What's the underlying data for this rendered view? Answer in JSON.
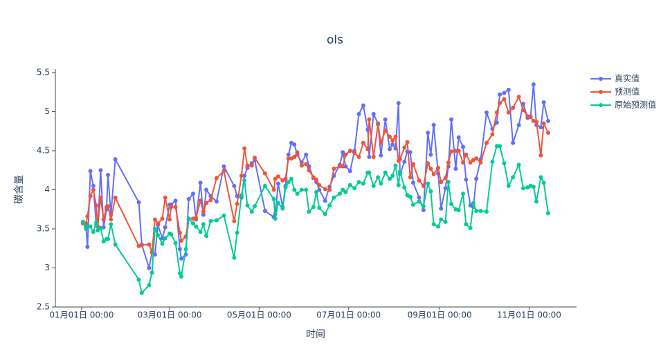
{
  "chart_data": {
    "type": "line",
    "title": "ols",
    "x_label": "时间",
    "y_label": "碳含量",
    "legend": "right",
    "grid": false,
    "x": [
      "01-02",
      "01-04",
      "01-05",
      "01-07",
      "01-09",
      "01-11",
      "01-12",
      "01-14",
      "01-16",
      "01-18",
      "01-19",
      "01-21",
      "01-24",
      "02-09",
      "02-11",
      "02-16",
      "02-18",
      "02-20",
      "02-22",
      "02-25",
      "02-27",
      "03-01",
      "03-02",
      "03-05",
      "03-08",
      "03-09",
      "03-12",
      "03-14",
      "03-17",
      "03-19",
      "03-22",
      "03-24",
      "03-26",
      "03-29",
      "04-02",
      "04-07",
      "04-14",
      "04-16",
      "04-19",
      "04-21",
      "04-23",
      "04-26",
      "04-28",
      "05-05",
      "05-11",
      "05-12",
      "05-14",
      "05-17",
      "05-19",
      "05-21",
      "05-23",
      "05-25",
      "05-27",
      "05-30",
      "06-02",
      "06-04",
      "06-07",
      "06-09",
      "06-11",
      "06-15",
      "06-18",
      "06-21",
      "06-25",
      "06-27",
      "06-29",
      "07-02",
      "07-05",
      "07-08",
      "07-11",
      "07-14",
      "07-15",
      "07-18",
      "07-21",
      "07-23",
      "07-26",
      "07-29",
      "07-31",
      "08-02",
      "08-04",
      "08-05",
      "08-08",
      "08-10",
      "08-12",
      "08-14",
      "08-18",
      "08-21",
      "08-24",
      "08-26",
      "08-28",
      "08-31",
      "09-02",
      "09-05",
      "09-07",
      "09-09",
      "09-12",
      "09-14",
      "09-17",
      "09-19",
      "09-22",
      "09-24",
      "09-26",
      "09-29",
      "10-03",
      "10-07",
      "10-10",
      "10-12",
      "10-15",
      "10-18",
      "10-21",
      "10-25",
      "10-28",
      "10-31",
      "11-02",
      "11-04",
      "11-06",
      "11-09",
      "11-11",
      "11-14"
    ],
    "series": [
      {
        "name": "真实值",
        "color": "#636efa",
        "values": [
          3.57,
          3.53,
          3.27,
          4.24,
          4.05,
          3.55,
          3.48,
          4.25,
          3.52,
          3.75,
          4.19,
          3.68,
          4.39,
          3.84,
          3.3,
          3.0,
          3.2,
          3.17,
          3.55,
          3.38,
          3.52,
          3.81,
          3.81,
          3.86,
          3.24,
          3.12,
          3.17,
          3.88,
          3.95,
          3.62,
          4.09,
          3.68,
          4.0,
          3.92,
          3.85,
          4.3,
          4.05,
          3.92,
          3.9,
          4.18,
          4.28,
          4.34,
          4.38,
          3.73,
          3.65,
          3.69,
          4.08,
          3.78,
          4.05,
          4.45,
          4.6,
          4.58,
          4.45,
          4.35,
          4.45,
          4.3,
          4.15,
          4.1,
          4.0,
          3.86,
          4.04,
          4.18,
          4.32,
          4.48,
          4.3,
          4.24,
          4.5,
          4.97,
          5.08,
          4.77,
          4.42,
          4.97,
          4.85,
          4.44,
          4.9,
          4.52,
          4.58,
          4.53,
          5.11,
          4.2,
          4.36,
          4.49,
          4.48,
          4.09,
          3.9,
          3.74,
          4.73,
          4.45,
          4.83,
          4.21,
          3.76,
          4.02,
          4.3,
          4.9,
          4.27,
          4.67,
          4.55,
          4.13,
          3.8,
          3.78,
          4.14,
          4.39,
          4.99,
          4.78,
          4.86,
          5.22,
          5.24,
          5.28,
          4.6,
          4.83,
          5.1,
          4.92,
          4.94,
          5.35,
          4.83,
          4.8,
          5.12,
          4.88
        ]
      },
      {
        "name": "预测值",
        "color": "#EF553B",
        "values": [
          3.58,
          3.57,
          3.66,
          3.92,
          4.0,
          3.8,
          3.53,
          3.9,
          3.62,
          3.78,
          3.79,
          3.62,
          3.9,
          3.28,
          3.29,
          3.3,
          3.2,
          3.62,
          3.57,
          3.63,
          3.9,
          3.62,
          3.78,
          3.78,
          3.45,
          3.35,
          3.4,
          3.63,
          3.63,
          3.64,
          3.86,
          3.72,
          3.83,
          3.87,
          4.15,
          4.24,
          3.6,
          3.82,
          4.18,
          4.53,
          4.31,
          4.31,
          4.41,
          4.21,
          4.0,
          4.14,
          4.17,
          4.12,
          4.14,
          4.4,
          4.4,
          4.42,
          4.48,
          4.31,
          4.33,
          4.25,
          4.16,
          4.13,
          4.06,
          4.01,
          4.0,
          4.27,
          4.3,
          4.3,
          4.45,
          4.5,
          4.47,
          4.42,
          4.6,
          4.52,
          4.9,
          4.42,
          4.84,
          4.6,
          4.76,
          4.68,
          4.63,
          4.68,
          4.37,
          4.39,
          4.54,
          4.61,
          4.16,
          4.33,
          4.12,
          4.05,
          4.34,
          4.27,
          4.2,
          4.28,
          4.1,
          4.15,
          4.35,
          4.49,
          4.5,
          4.5,
          4.35,
          4.45,
          4.35,
          4.38,
          4.4,
          4.35,
          4.6,
          4.71,
          4.99,
          5.11,
          5.16,
          4.99,
          5.05,
          5.19,
          5.02,
          4.94,
          4.93,
          4.88,
          4.87,
          4.44,
          4.85,
          4.73
        ]
      },
      {
        "name": "原始预测值",
        "color": "#00cc96",
        "values": [
          3.59,
          3.5,
          3.53,
          3.53,
          3.46,
          3.58,
          3.48,
          3.51,
          3.34,
          3.37,
          3.37,
          3.56,
          3.3,
          2.85,
          2.68,
          2.78,
          2.94,
          3.5,
          3.42,
          3.31,
          3.38,
          3.44,
          3.43,
          3.32,
          2.93,
          2.89,
          3.24,
          3.63,
          3.57,
          3.53,
          3.46,
          3.56,
          3.41,
          3.6,
          3.61,
          3.67,
          3.13,
          3.45,
          3.93,
          4.12,
          3.8,
          3.72,
          3.79,
          4.05,
          3.88,
          3.63,
          3.83,
          3.76,
          4.03,
          4.1,
          4.14,
          4.0,
          3.95,
          4.0,
          4.0,
          3.72,
          3.78,
          3.97,
          3.77,
          3.69,
          3.8,
          3.9,
          3.95,
          4.0,
          3.97,
          4.06,
          4.02,
          4.1,
          4.08,
          4.22,
          4.22,
          4.05,
          4.16,
          4.08,
          4.22,
          4.14,
          4.18,
          4.31,
          4.06,
          4.23,
          4.03,
          3.93,
          3.91,
          3.81,
          3.85,
          3.79,
          4.08,
          3.98,
          3.56,
          3.53,
          3.62,
          3.59,
          4.1,
          3.82,
          3.75,
          3.74,
          3.95,
          3.56,
          3.51,
          3.83,
          3.73,
          3.73,
          3.72,
          4.36,
          4.56,
          4.56,
          4.34,
          4.05,
          4.16,
          4.32,
          4.02,
          4.03,
          4.05,
          4.04,
          3.85,
          4.16,
          4.09,
          3.7
        ]
      }
    ],
    "xticks": [
      {
        "value": "01-01",
        "label": "01月01日 00:00"
      },
      {
        "value": "03-01",
        "label": "03月01日 00:00"
      },
      {
        "value": "05-01",
        "label": "05月01日 00:00"
      },
      {
        "value": "07-01",
        "label": "07月01日 00:00"
      },
      {
        "value": "09-01",
        "label": "09月01日 00:00"
      },
      {
        "value": "11-01",
        "label": "11月01日 00:00"
      }
    ],
    "ylim": [
      2.5,
      5.5
    ],
    "yticks": [
      2.5,
      3,
      3.5,
      4,
      4.5,
      5,
      5.5
    ]
  }
}
